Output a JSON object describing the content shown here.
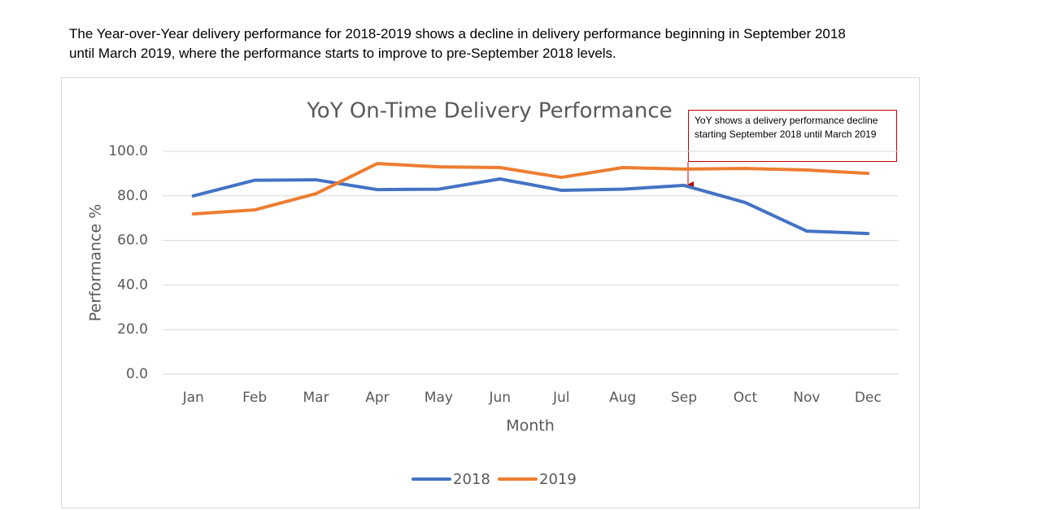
{
  "text": "The Year-over-Year delivery performance for 2018-2019 shows a decline in delivery performance beginning in September 2018 until March 2019, where the performance starts to improve to pre-September 2018 levels.",
  "chart_data": {
    "type": "line",
    "title": "YoY On-Time Delivery Performance",
    "x_label": "Month",
    "y_label": "Performance %",
    "annotation": "YoY shows a delivery performance decline starting September 2018 until March 2019",
    "categories": [
      "Jan",
      "Feb",
      "Mar",
      "Apr",
      "May",
      "Jun",
      "Jul",
      "Aug",
      "Sep",
      "Oct",
      "Nov",
      "Dec"
    ],
    "series": [
      {
        "name": "2018",
        "color": "#4472c4",
        "values": [
          80,
          87,
          87.2,
          82.8,
          83,
          87.6,
          82.5,
          83,
          84.7,
          77,
          64.2,
          63.1
        ]
      },
      {
        "name": "2019",
        "color": "#ed7d31",
        "values": [
          71.9,
          73.7,
          81,
          94.5,
          93,
          92.7,
          88.3,
          92.7,
          92,
          92.3,
          91.6,
          90.1
        ]
      }
    ],
    "ylim": [
      0,
      100
    ],
    "yticks": [
      {
        "value": 0,
        "label": "0.0"
      },
      {
        "value": 20,
        "label": "20.0"
      },
      {
        "value": 40,
        "label": "40.0"
      },
      {
        "value": 60,
        "label": "60.0"
      },
      {
        "value": 80,
        "label": "80.0"
      },
      {
        "value": 100,
        "label": "100.0"
      }
    ],
    "grid": true,
    "legend": "bottom"
  }
}
